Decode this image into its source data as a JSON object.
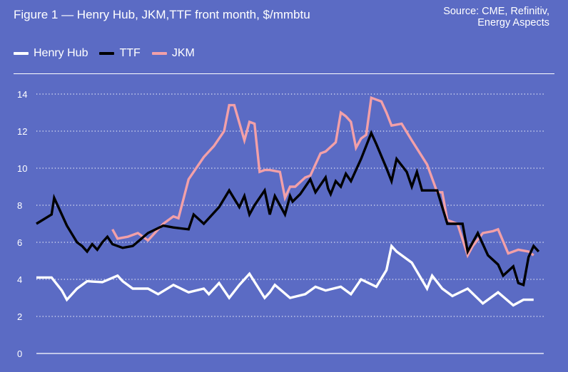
{
  "header": {
    "title": "Figure 1 — Henry Hub, JKM,TTF front month, $/mmbtu",
    "source_line1": "Source: CME, Refinitiv,",
    "source_line2": "Energy Aspects"
  },
  "legend": [
    {
      "label": "Henry Hub",
      "color": "#ffffff"
    },
    {
      "label": "TTF",
      "color": "#000000"
    },
    {
      "label": "JKM",
      "color": "#f2a0a8"
    }
  ],
  "colors": {
    "background": "#5b6bc4",
    "grid": "#ffffff"
  },
  "chart_data": {
    "type": "line",
    "title": "Figure 1 — Henry Hub, JKM,TTF front month, $/mmbtu",
    "xlabel": "",
    "ylabel": "",
    "ylim": [
      0,
      14
    ],
    "yticks": [
      0,
      2,
      4,
      6,
      8,
      10,
      12,
      14
    ],
    "xlim": [
      0,
      100
    ],
    "grid": "horizontal dotted",
    "legend_position": "top-left",
    "series": [
      {
        "name": "Henry Hub",
        "color": "#ffffff",
        "x": [
          0,
          3,
          5,
          6,
          8,
          10,
          13,
          16,
          17,
          19,
          21,
          22,
          24,
          27,
          30,
          33,
          34,
          36,
          38,
          40,
          42,
          45,
          46,
          47,
          50,
          53,
          55,
          57,
          60,
          62,
          64,
          67,
          69,
          70,
          71,
          74,
          77,
          78,
          80,
          82,
          85,
          88,
          91,
          94,
          96,
          98
        ],
        "y": [
          4.1,
          4.1,
          3.4,
          2.9,
          3.5,
          3.9,
          3.85,
          4.2,
          3.9,
          3.5,
          3.5,
          3.5,
          3.2,
          3.7,
          3.3,
          3.5,
          3.2,
          3.8,
          3.0,
          3.7,
          4.3,
          3.0,
          3.3,
          3.7,
          3.0,
          3.2,
          3.6,
          3.4,
          3.6,
          3.2,
          4.0,
          3.6,
          4.5,
          5.8,
          5.5,
          4.9,
          3.5,
          4.2,
          3.5,
          3.1,
          3.5,
          2.7,
          3.3,
          2.6,
          2.9,
          2.9
        ]
      },
      {
        "name": "TTF",
        "color": "#000000",
        "x": [
          0,
          3,
          3.5,
          5,
          6,
          8,
          9,
          10,
          11,
          12,
          13,
          14,
          15,
          17,
          19,
          22,
          25,
          27,
          30,
          31,
          33,
          36,
          38,
          40,
          41,
          42,
          43,
          45,
          46,
          47,
          49,
          50,
          50.5,
          52,
          54,
          55,
          57,
          57.5,
          58,
          59,
          60,
          61,
          62,
          64,
          66,
          67,
          69,
          70,
          71,
          73,
          74,
          75,
          76,
          78,
          79,
          81,
          82,
          84,
          85,
          87,
          89,
          91,
          92,
          94,
          95,
          96,
          97,
          98,
          99
        ],
        "y": [
          7.0,
          7.5,
          8.4,
          7.5,
          6.9,
          6.0,
          5.8,
          5.5,
          5.9,
          5.6,
          6.0,
          6.3,
          5.9,
          5.7,
          5.8,
          6.5,
          6.9,
          6.8,
          6.7,
          7.5,
          7.0,
          7.9,
          8.8,
          7.9,
          8.5,
          7.5,
          8.0,
          8.8,
          7.5,
          8.5,
          7.5,
          8.5,
          8.2,
          8.6,
          9.4,
          8.7,
          9.5,
          8.9,
          8.6,
          9.3,
          9.0,
          9.7,
          9.3,
          10.5,
          11.9,
          11.3,
          10.0,
          9.3,
          10.5,
          9.8,
          9.0,
          9.8,
          8.8,
          8.8,
          8.8,
          7.0,
          7.0,
          7.0,
          5.5,
          6.5,
          5.3,
          4.8,
          4.2,
          4.7,
          3.8,
          3.7,
          5.2,
          5.8,
          5.5
        ],
        "display_note": ""
      },
      {
        "name": "JKM",
        "color": "#f2a0a8",
        "x": [
          15,
          16,
          18,
          20,
          22,
          23,
          25,
          27,
          28,
          30,
          31,
          33,
          35,
          37,
          38,
          39,
          41,
          42,
          43,
          44,
          45,
          46,
          48,
          49,
          50,
          51,
          53,
          54,
          56,
          57,
          59,
          60,
          61,
          62,
          63,
          64,
          65,
          66,
          67,
          68,
          69,
          70,
          72,
          74,
          77,
          79,
          80,
          81,
          82,
          83,
          85,
          86,
          88,
          90,
          91,
          93,
          95,
          97,
          98
        ],
        "y": [
          6.7,
          6.2,
          6.3,
          6.5,
          6.1,
          6.4,
          7.0,
          7.4,
          7.3,
          9.4,
          9.8,
          10.6,
          11.2,
          12.0,
          13.4,
          13.4,
          11.5,
          12.5,
          12.4,
          9.8,
          9.9,
          9.9,
          9.8,
          8.4,
          9.0,
          9.0,
          9.5,
          9.6,
          10.8,
          10.9,
          11.4,
          13.0,
          12.8,
          12.5,
          11.1,
          11.6,
          11.8,
          13.8,
          13.7,
          13.6,
          13.0,
          12.3,
          12.4,
          11.5,
          10.2,
          8.7,
          8.7,
          7.2,
          7.1,
          7.0,
          5.3,
          5.8,
          6.5,
          6.6,
          6.7,
          5.4,
          5.6,
          5.5,
          5.3
        ]
      }
    ]
  }
}
